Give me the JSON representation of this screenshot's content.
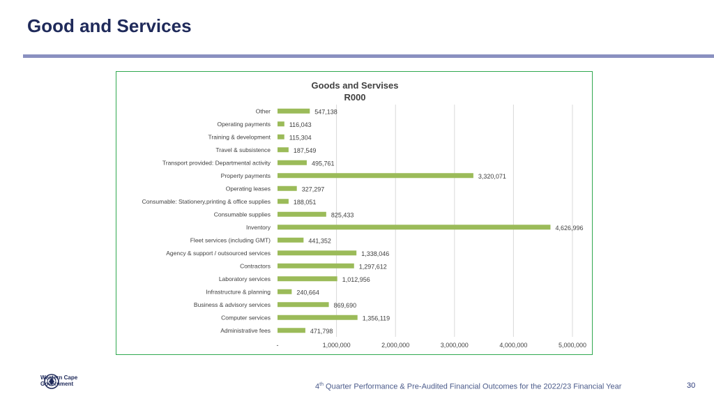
{
  "slide": {
    "title": "Good and Services",
    "footer_prefix": "4",
    "footer_sup": "th",
    "footer_text": " Quarter Performance & Pre-Audited Financial Outcomes for the 2022/23 Financial Year",
    "page_number": "30",
    "logo_line1": "Western Cape",
    "logo_line2": "Government"
  },
  "colors": {
    "title": "#1f2a5a",
    "rule": "#8a90c0",
    "frame": "#2fa84f",
    "bar": "#9bbb59",
    "grid": "#d9d9d9",
    "text": "#404040"
  },
  "chart_data": {
    "type": "bar",
    "orientation": "horizontal",
    "title": "Goods and Servises",
    "subtitle": "R000",
    "categories": [
      "Other",
      "Operating payments",
      "Training & development",
      "Travel & subsistence",
      "Transport provided: Departmental activity",
      "Property payments",
      "Operating leases",
      "Consumable: Stationery,printing & office supplies",
      "Consumable supplies",
      "Inventory",
      "Fleet services (including GMT)",
      "Agency & support / outsourced services",
      "Contractors",
      "Laboratory services",
      "Infrastructure & planning",
      "Business & advisory services",
      "Computer services",
      "Administrative fees"
    ],
    "values": [
      547138,
      116043,
      115304,
      187549,
      495761,
      3320071,
      327297,
      188051,
      825433,
      4626996,
      441352,
      1338046,
      1297612,
      1012956,
      240664,
      869690,
      1356119,
      471798
    ],
    "value_labels": [
      "547,138",
      "116,043",
      "115,304",
      "187,549",
      "495,761",
      "3,320,071",
      "327,297",
      "188,051",
      "825,433",
      "4,626,996",
      "441,352",
      "1,338,046",
      "1,297,612",
      "1,012,956",
      "240,664",
      "869,690",
      "1,356,119",
      "471,798"
    ],
    "xlim": [
      0,
      5000000
    ],
    "xticks": [
      0,
      1000000,
      2000000,
      3000000,
      4000000,
      5000000
    ],
    "xtick_labels": [
      "-",
      "1,000,000",
      "2,000,000",
      "3,000,000",
      "4,000,000",
      "5,000,000"
    ],
    "grid": true,
    "legend": "none"
  }
}
